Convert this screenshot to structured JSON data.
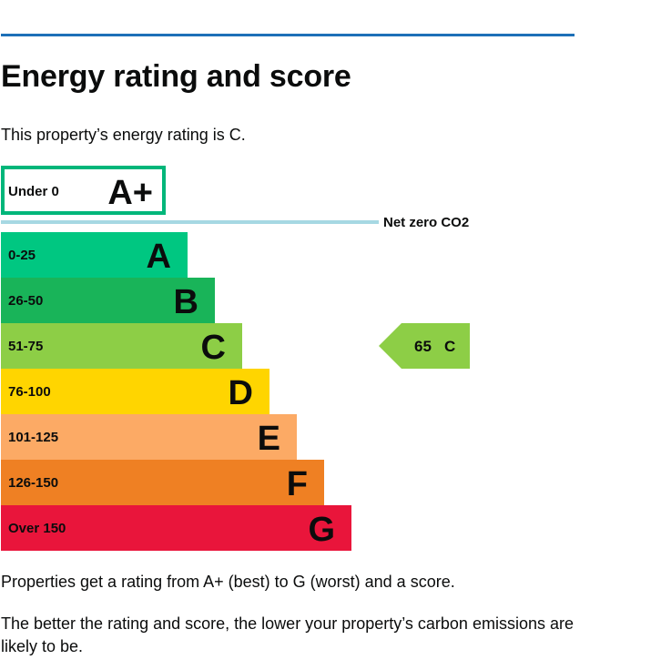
{
  "heading": "Energy rating and score",
  "intro": "This property’s energy rating is C.",
  "colors": {
    "rule": "#1d70b8",
    "aplus_border": "#00b67a",
    "netzero_line": "#a6d8e3",
    "A": "#00c781",
    "B": "#19b459",
    "C": "#8dce46",
    "D": "#ffd500",
    "E": "#fcaa65",
    "F": "#ef8023",
    "G": "#e9153b"
  },
  "chart_data": {
    "type": "bar",
    "title": "",
    "aplus": {
      "range": "Under 0",
      "letter": "A+"
    },
    "net_zero_label": "Net zero CO2",
    "bands": [
      {
        "range": "0-25",
        "letter": "A"
      },
      {
        "range": "26-50",
        "letter": "B"
      },
      {
        "range": "51-75",
        "letter": "C"
      },
      {
        "range": "76-100",
        "letter": "D"
      },
      {
        "range": "101-125",
        "letter": "E"
      },
      {
        "range": "126-150",
        "letter": "F"
      },
      {
        "range": "Over 150",
        "letter": "G"
      }
    ],
    "current": {
      "score": "65",
      "rating": "C"
    }
  },
  "footer": {
    "range_text": "Properties get a rating from A+ (best) to G (worst) and a score.",
    "better_text": "The better the rating and score, the lower your property’s carbon emissions are likely to be."
  }
}
